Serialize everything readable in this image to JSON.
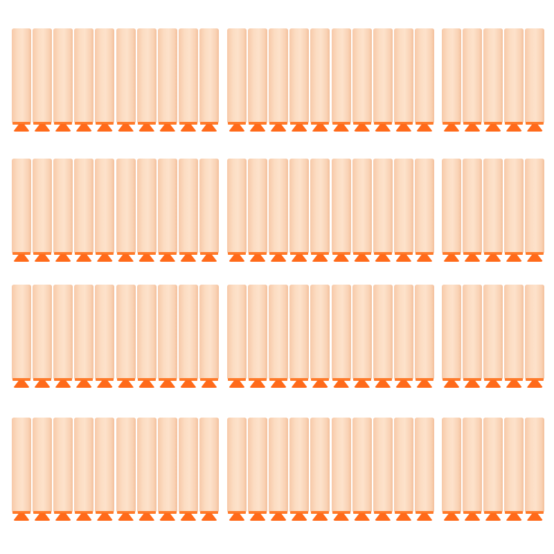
{
  "image": {
    "subject": "foam-darts",
    "colors": {
      "foam": "#fcdcc2",
      "tip": "#ff6a1a",
      "background": "#ffffff"
    }
  }
}
